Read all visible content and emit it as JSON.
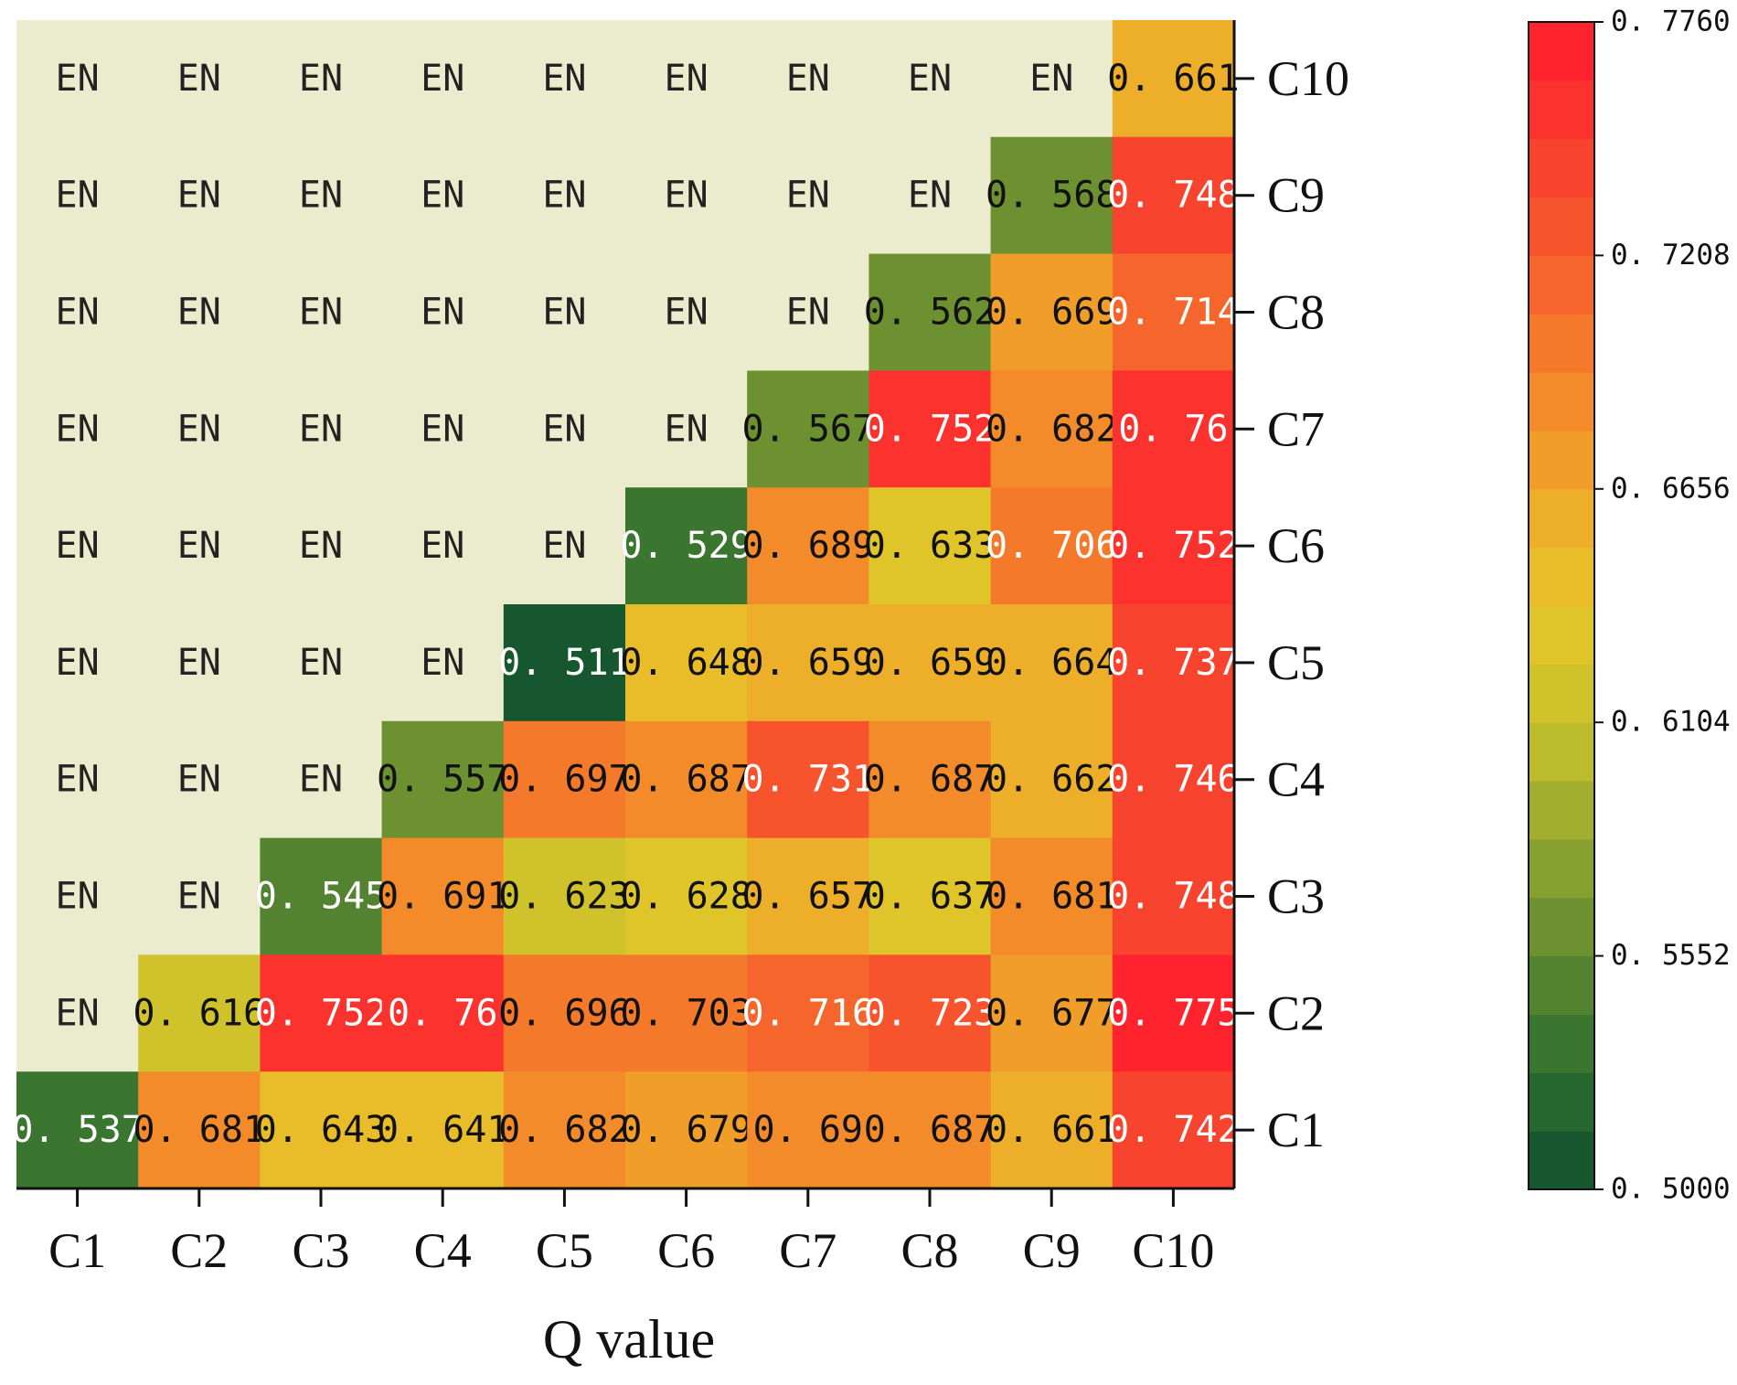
{
  "chart_data": {
    "type": "heatmap",
    "xlabel": "Q value",
    "x_categories": [
      "C1",
      "C2",
      "C3",
      "C4",
      "C5",
      "C6",
      "C7",
      "C8",
      "C9",
      "C10"
    ],
    "y_categories": [
      "C1",
      "C2",
      "C3",
      "C4",
      "C5",
      "C6",
      "C7",
      "C8",
      "C9",
      "C10"
    ],
    "y_order": "C1 at bottom, C10 at top; y tick labels on right side",
    "masked_label": "EN",
    "rows": [
      {
        "y": "C10",
        "values": [
          null,
          null,
          null,
          null,
          null,
          null,
          null,
          null,
          null,
          0.661
        ],
        "labels": [
          "EN",
          "EN",
          "EN",
          "EN",
          "EN",
          "EN",
          "EN",
          "EN",
          "EN",
          "0. 661"
        ]
      },
      {
        "y": "C9",
        "values": [
          null,
          null,
          null,
          null,
          null,
          null,
          null,
          null,
          0.568,
          0.748
        ],
        "labels": [
          "EN",
          "EN",
          "EN",
          "EN",
          "EN",
          "EN",
          "EN",
          "EN",
          "0. 568",
          "0. 748"
        ]
      },
      {
        "y": "C8",
        "values": [
          null,
          null,
          null,
          null,
          null,
          null,
          null,
          0.562,
          0.669,
          0.714
        ],
        "labels": [
          "EN",
          "EN",
          "EN",
          "EN",
          "EN",
          "EN",
          "EN",
          "0. 562",
          "0. 669",
          "0. 714"
        ]
      },
      {
        "y": "C7",
        "values": [
          null,
          null,
          null,
          null,
          null,
          null,
          0.567,
          0.752,
          0.682,
          0.76
        ],
        "labels": [
          "EN",
          "EN",
          "EN",
          "EN",
          "EN",
          "EN",
          "0. 567",
          "0. 752",
          "0. 682",
          "0. 76"
        ]
      },
      {
        "y": "C6",
        "values": [
          null,
          null,
          null,
          null,
          null,
          0.529,
          0.689,
          0.633,
          0.706,
          0.752
        ],
        "labels": [
          "EN",
          "EN",
          "EN",
          "EN",
          "EN",
          "0. 529",
          "0. 689",
          "0. 633",
          "0. 706",
          "0. 752"
        ]
      },
      {
        "y": "C5",
        "values": [
          null,
          null,
          null,
          null,
          0.511,
          0.648,
          0.659,
          0.659,
          0.664,
          0.737
        ],
        "labels": [
          "EN",
          "EN",
          "EN",
          "EN",
          "0. 511",
          "0. 648",
          "0. 659",
          "0. 659",
          "0. 664",
          "0. 737"
        ]
      },
      {
        "y": "C4",
        "values": [
          null,
          null,
          null,
          0.557,
          0.697,
          0.687,
          0.731,
          0.687,
          0.662,
          0.746
        ],
        "labels": [
          "EN",
          "EN",
          "EN",
          "0. 557",
          "0. 697",
          "0. 687",
          "0. 731",
          "0. 687",
          "0. 662",
          "0. 746"
        ]
      },
      {
        "y": "C3",
        "values": [
          null,
          null,
          0.545,
          0.691,
          0.623,
          0.628,
          0.657,
          0.637,
          0.681,
          0.748
        ],
        "labels": [
          "EN",
          "EN",
          "0. 545",
          "0. 691",
          "0. 623",
          "0. 628",
          "0. 657",
          "0. 637",
          "0. 681",
          "0. 748"
        ]
      },
      {
        "y": "C2",
        "values": [
          null,
          0.616,
          0.752,
          0.76,
          0.696,
          0.703,
          0.716,
          0.723,
          0.677,
          0.775
        ],
        "labels": [
          "EN",
          "0. 616",
          "0. 752",
          "0. 76",
          "0. 696",
          "0. 703",
          "0. 716",
          "0. 723",
          "0. 677",
          "0. 775"
        ]
      },
      {
        "y": "C1",
        "values": [
          0.537,
          0.681,
          0.643,
          0.641,
          0.682,
          0.679,
          0.69,
          0.687,
          0.661,
          0.742
        ],
        "labels": [
          "0. 537",
          "0. 681",
          "0. 643",
          "0. 641",
          "0. 682",
          "0. 679",
          "0. 69",
          "0. 687",
          "0. 661",
          "0. 742"
        ]
      }
    ],
    "colorbar": {
      "min": 0.5,
      "max": 0.776,
      "ticks": [
        0.5,
        0.5552,
        0.6104,
        0.6656,
        0.7208,
        0.776
      ],
      "tick_labels": [
        "0. 5000",
        "0. 5552",
        "0. 6104",
        "0. 6656",
        "0. 7208",
        "0. 7760"
      ],
      "bands": 20
    },
    "colors": {
      "masked_fill": "#ebebcd",
      "gradient_stops": [
        "#0f4f2f",
        "#2f6f30",
        "#5f8a30",
        "#95a72e",
        "#c7c12b",
        "#e7c52a",
        "#efa62a",
        "#f4822a",
        "#f65d2c",
        "#f93a2e",
        "#ff1b2b"
      ]
    }
  }
}
